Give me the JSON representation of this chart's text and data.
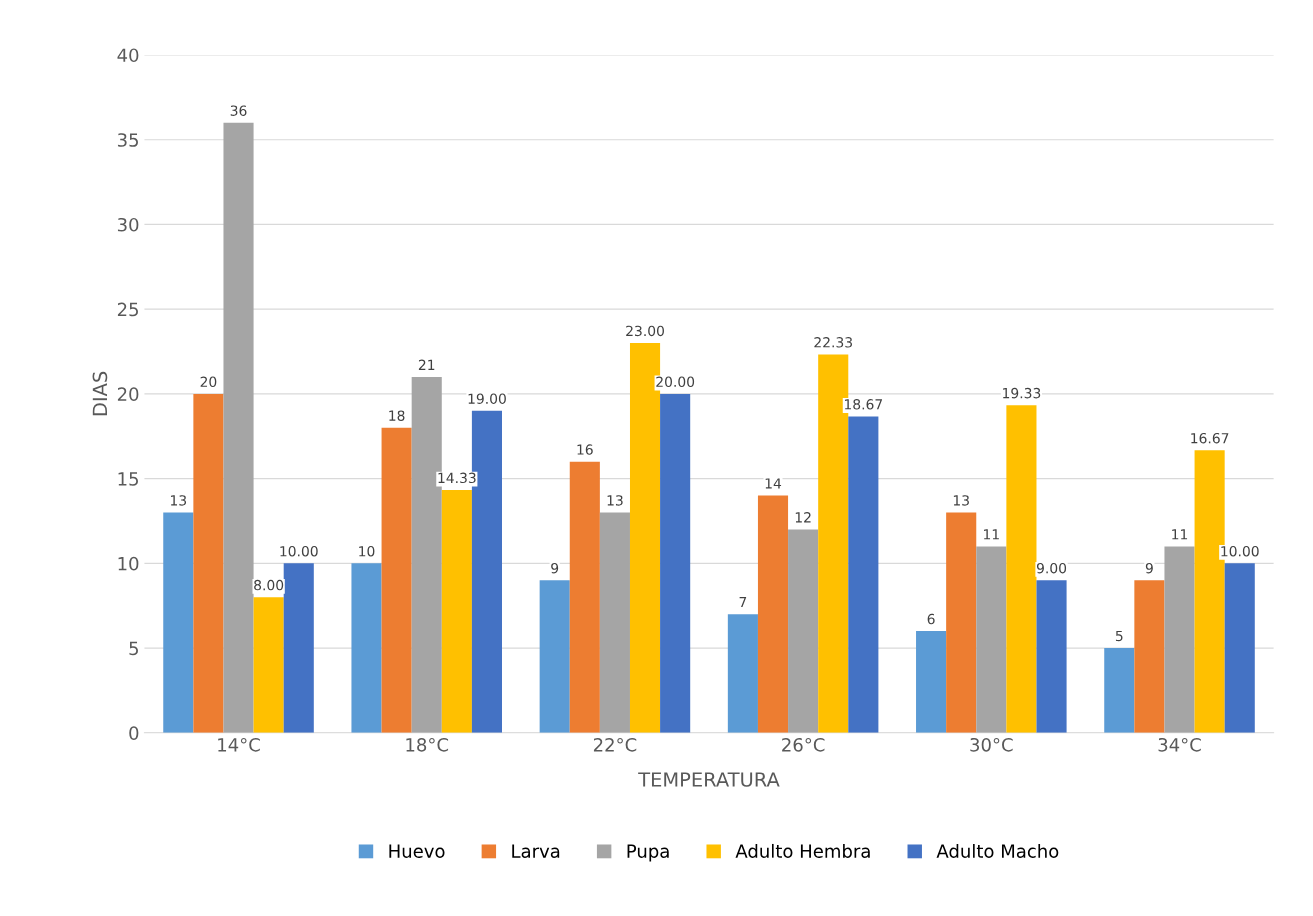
{
  "chart_data": {
    "type": "bar",
    "xlabel": "TEMPERATURA",
    "ylabel": "DIAS",
    "categories": [
      "14°C",
      "18°C",
      "22°C",
      "26°C",
      "30°C",
      "34°C"
    ],
    "series": [
      {
        "name": "Huevo",
        "color": "#5b9bd5",
        "values": [
          13,
          10,
          9,
          7,
          6,
          5
        ],
        "value_labels": [
          "13",
          "10",
          "9",
          "7",
          "6",
          "5"
        ]
      },
      {
        "name": "Larva",
        "color": "#ed7d31",
        "values": [
          20,
          18,
          16,
          14,
          13,
          9
        ],
        "value_labels": [
          "20",
          "18",
          "16",
          "14",
          "13",
          "9"
        ]
      },
      {
        "name": "Pupa",
        "color": "#a5a5a5",
        "values": [
          36,
          21,
          13,
          12,
          11,
          11
        ],
        "value_labels": [
          "36",
          "21",
          "13",
          "12",
          "11",
          "11"
        ]
      },
      {
        "name": "Adulto Hembra",
        "color": "#ffc000",
        "values": [
          8.0,
          14.33,
          23.0,
          22.33,
          19.33,
          16.67
        ],
        "value_labels": [
          "8.00",
          "14.33",
          "23.00",
          "22.33",
          "19.33",
          "16.67"
        ]
      },
      {
        "name": "Adulto Macho",
        "color": "#4472c4",
        "values": [
          10.0,
          19.0,
          20.0,
          18.67,
          9.0,
          10.0
        ],
        "value_labels": [
          "10.00",
          "19.00",
          "20.00",
          "18.67",
          "9.00",
          "10.00"
        ]
      }
    ],
    "ylim": [
      0,
      40
    ],
    "yticks": [
      0,
      5,
      10,
      15,
      20,
      25,
      30,
      35,
      40
    ],
    "grid": "y",
    "legend": "bottom"
  }
}
